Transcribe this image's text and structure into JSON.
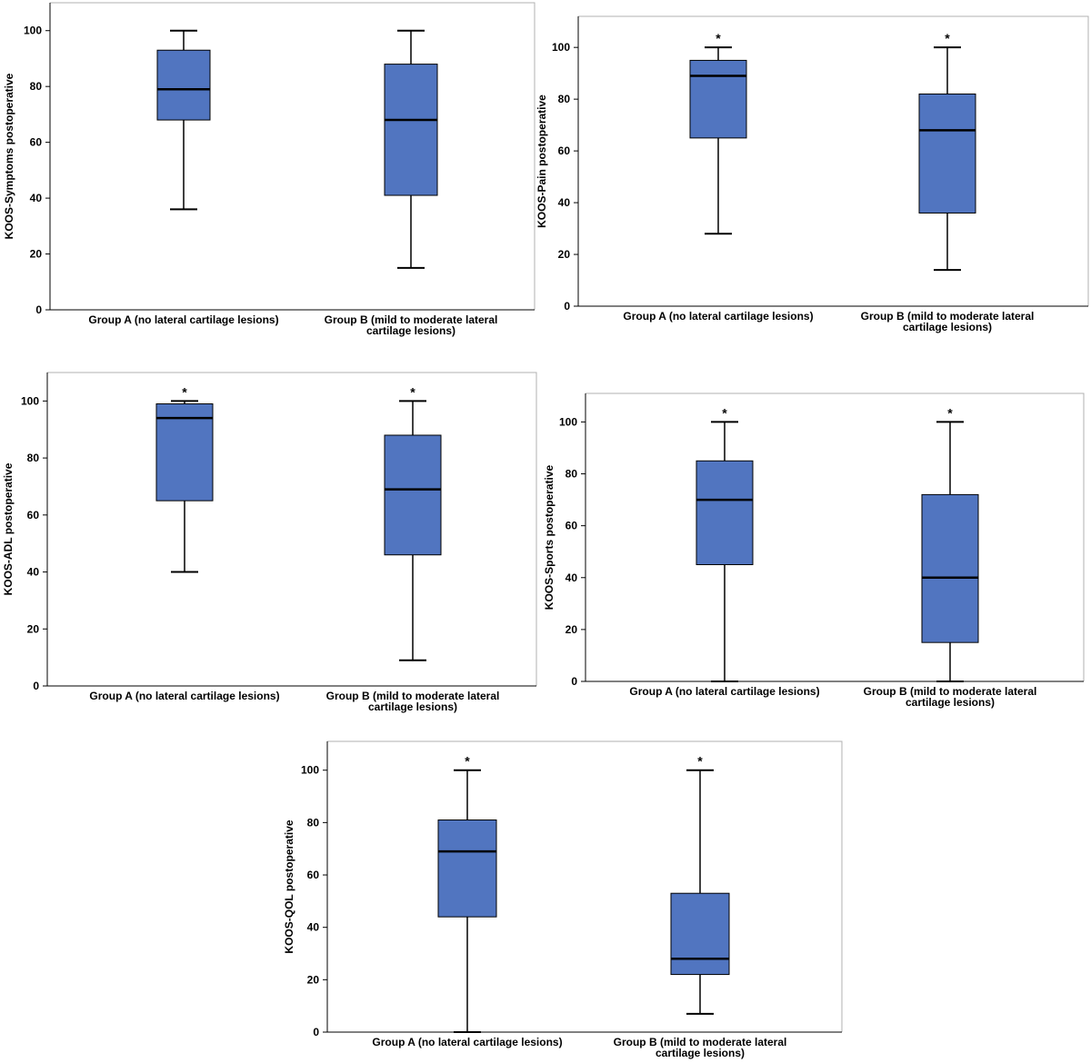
{
  "colors": {
    "box_fill": "#5175c0",
    "frame": "#b0b0b0",
    "axis": "#000000"
  },
  "chart_data": [
    {
      "type": "boxplot",
      "ylabel": "KOOS-Symptoms postoperative",
      "ylim": [
        0,
        110
      ],
      "yticks": [
        0,
        20,
        40,
        60,
        80,
        100
      ],
      "categories": [
        "Group A (no lateral cartilage lesions)",
        "Group B (mild to moderate lateral cartilage lesions)"
      ],
      "boxes": [
        {
          "min": 36,
          "q1": 68,
          "median": 79,
          "q3": 93,
          "max": 100,
          "marker": ""
        },
        {
          "min": 15,
          "q1": 41,
          "median": 68,
          "q3": 88,
          "max": 100,
          "marker": ""
        }
      ]
    },
    {
      "type": "boxplot",
      "ylabel": "KOOS-Pain postoperative",
      "ylim": [
        0,
        112
      ],
      "yticks": [
        0,
        20,
        40,
        60,
        80,
        100
      ],
      "categories": [
        "Group A (no lateral cartilage lesions)",
        "Group B (mild to moderate lateral cartilage lesions)"
      ],
      "boxes": [
        {
          "min": 28,
          "q1": 65,
          "median": 89,
          "q3": 95,
          "max": 100,
          "marker": "*"
        },
        {
          "min": 14,
          "q1": 36,
          "median": 68,
          "q3": 82,
          "max": 100,
          "marker": "*"
        }
      ]
    },
    {
      "type": "boxplot",
      "ylabel": "KOOS-ADL postoperative",
      "ylim": [
        0,
        110
      ],
      "yticks": [
        0,
        20,
        40,
        60,
        80,
        100
      ],
      "categories": [
        "Group A (no lateral cartilage lesions)",
        "Group B (mild to moderate lateral cartilage lesions)"
      ],
      "boxes": [
        {
          "min": 40,
          "q1": 65,
          "median": 94,
          "q3": 99,
          "max": 100,
          "marker": "*"
        },
        {
          "min": 9,
          "q1": 46,
          "median": 69,
          "q3": 88,
          "max": 100,
          "marker": "*"
        }
      ]
    },
    {
      "type": "boxplot",
      "ylabel": "KOOS-Sports postoperative",
      "ylim": [
        0,
        111
      ],
      "yticks": [
        0,
        20,
        40,
        60,
        80,
        100
      ],
      "categories": [
        "Group A (no lateral cartilage lesions)",
        "Group B (mild to moderate lateral cartilage lesions)"
      ],
      "boxes": [
        {
          "min": 0,
          "q1": 45,
          "median": 70,
          "q3": 85,
          "max": 100,
          "marker": "*"
        },
        {
          "min": 0,
          "q1": 15,
          "median": 40,
          "q3": 72,
          "max": 100,
          "marker": "*"
        }
      ]
    },
    {
      "type": "boxplot",
      "ylabel": "KOOS-QOL postoperative",
      "ylim": [
        0,
        111
      ],
      "yticks": [
        0,
        20,
        40,
        60,
        80,
        100
      ],
      "categories": [
        "Group A (no lateral cartilage lesions)",
        "Group B (mild to moderate lateral cartilage lesions)"
      ],
      "boxes": [
        {
          "min": 0,
          "q1": 44,
          "median": 69,
          "q3": 81,
          "max": 100,
          "marker": "*"
        },
        {
          "min": 7,
          "q1": 22,
          "median": 28,
          "q3": 53,
          "max": 100,
          "marker": "*"
        }
      ]
    }
  ]
}
